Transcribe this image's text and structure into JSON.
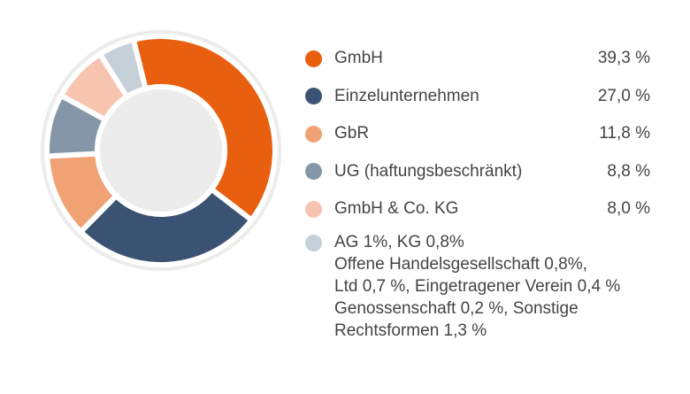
{
  "chart_data": {
    "type": "pie",
    "variant": "donut",
    "slices": [
      {
        "label": "GmbH",
        "value": 39.3,
        "value_text": "39,3 %",
        "color": "#e8600f"
      },
      {
        "label": "Einzelunternehmen",
        "value": 27.0,
        "value_text": "27,0 %",
        "color": "#3a5372"
      },
      {
        "label": "GbR",
        "value": 11.8,
        "value_text": "11,8 %",
        "color": "#f1a275"
      },
      {
        "label": "UG (haftungsbeschränkt)",
        "value": 8.8,
        "value_text": "8,8 %",
        "color": "#8596a8"
      },
      {
        "label": "GmbH & Co. KG",
        "value": 8.0,
        "value_text": "8,0 %",
        "color": "#f7c4b0"
      },
      {
        "label": "AG, KG, Offene Handelsgesellschaft, Ltd, Eingetragener Verein, Genossenschaft, Sonstige Rechtsformen",
        "value": 5.1,
        "color": "#c5d0d8"
      }
    ],
    "other_lines": [
      "AG 1%,  KG 0,8%",
      "Offene Handelsgesellschaft 0,8%,",
      "Ltd 0,7 %, Eingetragener Verein 0,4 %",
      "Genossenschaft 0,2 %, Sonstige",
      "Rechtsformen 1,3 %"
    ],
    "legend_position": "right",
    "ring_background_color": "#ececec"
  }
}
